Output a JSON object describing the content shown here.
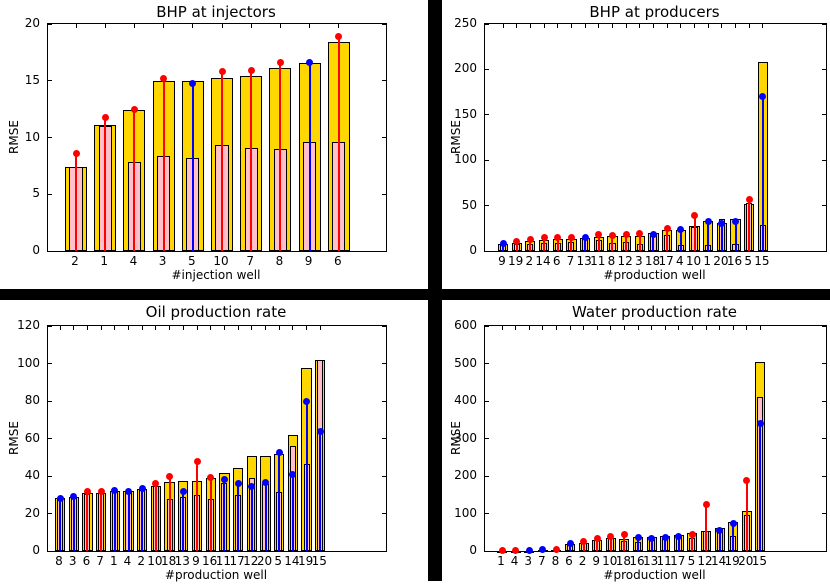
{
  "colors": {
    "gold_bar": "#FFD700",
    "pink_bar": "#FFC0CB",
    "red_stem": "#FF0000",
    "blue_stem": "#0000FF",
    "bar_edge": "#000000",
    "divider": "#000000",
    "background": "#FFFFFF"
  },
  "chart_data": [
    {
      "type": "bar",
      "title": "BHP at injectors",
      "xlabel": "#injection well",
      "ylabel": "RMSE",
      "ylim": [
        0,
        20
      ],
      "yticks": [
        0,
        5,
        10,
        15,
        20
      ],
      "grid": false,
      "legend": null,
      "categories": [
        "2",
        "1",
        "4",
        "3",
        "5",
        "10",
        "7",
        "8",
        "9",
        "6"
      ],
      "series": [
        {
          "name": "outer-gold-bar",
          "values": [
            7.4,
            11.1,
            12.4,
            15.0,
            15.0,
            15.2,
            15.4,
            16.1,
            16.6,
            18.4
          ]
        },
        {
          "name": "inner-pink-bar",
          "values": [
            7.4,
            11.0,
            7.8,
            8.4,
            8.2,
            9.3,
            9.1,
            9.0,
            9.6,
            9.6
          ]
        },
        {
          "name": "stem-marker",
          "values": [
            8.6,
            11.8,
            12.5,
            15.2,
            14.8,
            15.8,
            15.9,
            16.6,
            16.6,
            18.9
          ],
          "colors": [
            "red",
            "red",
            "red",
            "red",
            "blue",
            "red",
            "red",
            "red",
            "blue",
            "red"
          ]
        }
      ]
    },
    {
      "type": "bar",
      "title": "BHP at producers",
      "xlabel": "#production well",
      "ylabel": "RMSE",
      "ylim": [
        0,
        250
      ],
      "yticks": [
        0,
        50,
        100,
        150,
        200,
        250
      ],
      "grid": false,
      "legend": null,
      "categories": [
        "9",
        "19",
        "2",
        "14",
        "6",
        "7",
        "13",
        "11",
        "8",
        "12",
        "3",
        "18",
        "17",
        "4",
        "10",
        "1",
        "20",
        "16",
        "5",
        "15"
      ],
      "series": [
        {
          "name": "outer-gold-bar",
          "values": [
            8,
            9,
            10.5,
            12.5,
            13,
            13.5,
            14.5,
            15.5,
            16,
            16.5,
            17,
            19.5,
            23,
            23,
            28,
            33.5,
            31,
            35.5,
            52,
            208
          ]
        },
        {
          "name": "inner-pink-bar",
          "values": [
            8,
            8,
            8,
            9,
            9,
            9.5,
            14,
            12,
            8.5,
            10,
            8,
            18.5,
            17.5,
            7,
            26,
            7,
            35.5,
            8,
            53,
            29
          ]
        },
        {
          "name": "stem-marker",
          "values": [
            8.5,
            11,
            12.5,
            14.5,
            14.5,
            15,
            14.5,
            18.5,
            17.5,
            18.5,
            19.5,
            18.5,
            25,
            23.5,
            39,
            32.5,
            30,
            32.5,
            57,
            170
          ],
          "colors": [
            "blue",
            "red",
            "red",
            "red",
            "red",
            "red",
            "blue",
            "red",
            "red",
            "red",
            "red",
            "blue",
            "red",
            "blue",
            "red",
            "blue",
            "blue",
            "blue",
            "red",
            "blue"
          ]
        }
      ]
    },
    {
      "type": "bar",
      "title": "Oil production rate",
      "xlabel": "#production well",
      "ylabel": "RMSE",
      "ylim": [
        0,
        120
      ],
      "yticks": [
        0,
        20,
        40,
        60,
        80,
        100,
        120
      ],
      "grid": false,
      "legend": null,
      "categories": [
        "8",
        "3",
        "6",
        "7",
        "1",
        "4",
        "2",
        "10",
        "18",
        "13",
        "9",
        "16",
        "11",
        "17",
        "12",
        "20",
        "5",
        "14",
        "19",
        "15"
      ],
      "series": [
        {
          "name": "outer-gold-bar",
          "values": [
            28.5,
            29,
            31,
            31,
            32,
            32,
            33,
            34.5,
            37,
            37.5,
            37.5,
            39,
            41.5,
            44.5,
            50.5,
            50.5,
            52,
            62,
            97.5,
            102
          ]
        },
        {
          "name": "inner-pink-bar",
          "values": [
            28.5,
            29,
            30.5,
            31,
            31.5,
            32,
            33,
            34.5,
            27.5,
            29,
            30,
            27.5,
            36.5,
            30,
            39,
            35.5,
            31.5,
            56,
            46.5,
            102
          ]
        },
        {
          "name": "stem-marker",
          "values": [
            28,
            29,
            31.5,
            31.5,
            32.5,
            32,
            33.5,
            36,
            39.5,
            31.5,
            48,
            39,
            38,
            36,
            34.5,
            36.5,
            52.5,
            41,
            79.5,
            64
          ],
          "colors": [
            "blue",
            "blue",
            "red",
            "red",
            "blue",
            "blue",
            "blue",
            "red",
            "red",
            "blue",
            "red",
            "red",
            "blue",
            "blue",
            "blue",
            "blue",
            "blue",
            "blue",
            "blue",
            "blue"
          ]
        }
      ]
    },
    {
      "type": "bar",
      "title": "Water production rate",
      "xlabel": "#production well",
      "ylabel": "RMSE",
      "ylim": [
        0,
        600
      ],
      "yticks": [
        0,
        100,
        200,
        300,
        400,
        500,
        600
      ],
      "grid": false,
      "legend": null,
      "categories": [
        "1",
        "4",
        "3",
        "7",
        "8",
        "6",
        "2",
        "9",
        "10",
        "18",
        "16",
        "13",
        "11",
        "17",
        "5",
        "12",
        "14",
        "19",
        "20",
        "15"
      ],
      "series": [
        {
          "name": "outer-gold-bar",
          "values": [
            1,
            1,
            1,
            2,
            3,
            20,
            22,
            30,
            35,
            33,
            37,
            38,
            40,
            43,
            48,
            54,
            61,
            78,
            106,
            503
          ]
        },
        {
          "name": "inner-pink-bar",
          "values": [
            1,
            1,
            1,
            2,
            3,
            20,
            22,
            30,
            35,
            27,
            25,
            38,
            37,
            43,
            34,
            54,
            61,
            41,
            97,
            410
          ]
        },
        {
          "name": "stem-marker",
          "values": [
            2,
            2,
            2,
            3,
            4,
            21,
            26,
            33,
            38,
            44,
            36,
            34,
            36,
            39,
            43,
            125,
            56,
            74,
            188,
            340
          ],
          "colors": [
            "red",
            "red",
            "blue",
            "blue",
            "red",
            "blue",
            "red",
            "red",
            "red",
            "red",
            "blue",
            "blue",
            "blue",
            "blue",
            "red",
            "red",
            "blue",
            "blue",
            "red",
            "blue"
          ]
        }
      ]
    }
  ]
}
